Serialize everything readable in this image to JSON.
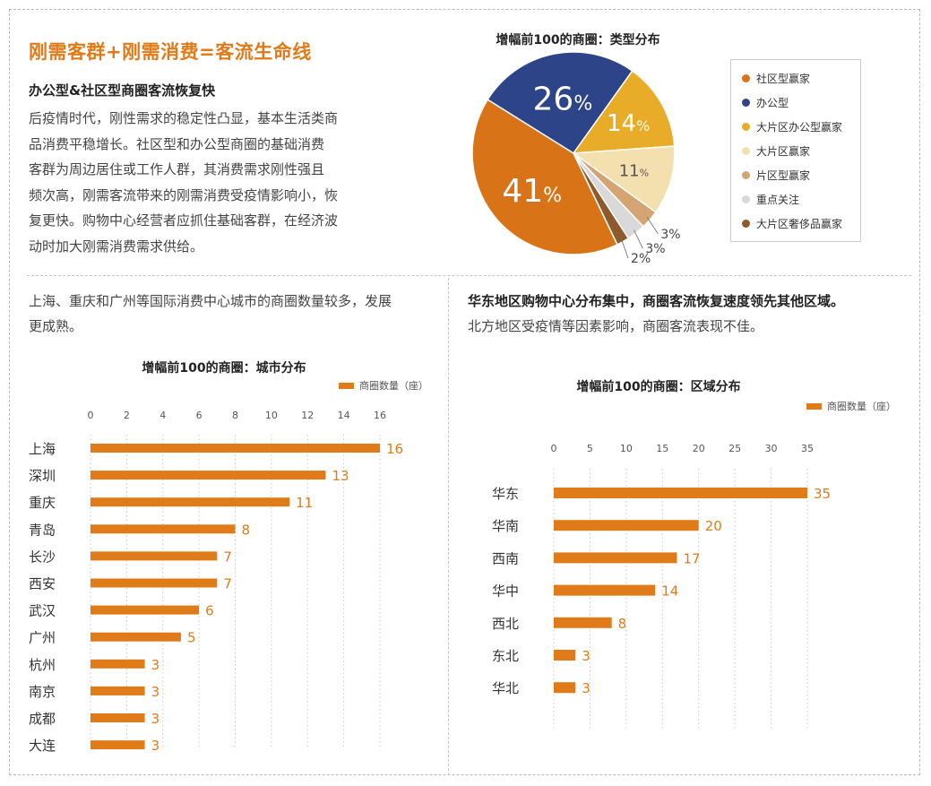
{
  "header": {
    "title": "刚需客群+刚需消费=客流生命线",
    "subtitle": "办公型&社区型商圈客流恢复快",
    "paragraph_lines": [
      "后疫情时代，刚性需求的稳定性凸显，基本生活类商",
      "品消费平稳增长。社区型和办公型商圈的基础消费",
      "客群为周边居住或工作人群，其消费需求刚性强且",
      "频次高，刚需客流带来的刚需消费受疫情影响小，恢",
      "复更快。购物中心经营者应抓住基础客群，在经济波",
      "动时加大刚需消费需求供给。"
    ]
  },
  "left_caption": {
    "line1": "上海、重庆和广州等国际消费中心城市的商圈数量较多，发展",
    "line2": "更成熟。"
  },
  "right_caption": {
    "line1": "华东地区购物中心分布集中，商圈客流恢复速度领先其他区域。",
    "line2": "北方地区受疫情等因素影响，商圈客流表现不佳。"
  },
  "colors": {
    "accent": "#e07b1a",
    "navy": "#2d4488"
  },
  "chart_data": [
    {
      "type": "pie",
      "title": "增幅前100的商圈：类型分布",
      "unit": "%",
      "slices": [
        {
          "label": "社区型赢家",
          "value": 41,
          "color": "#d97318"
        },
        {
          "label": "办公型",
          "value": 26,
          "color": "#2d4488"
        },
        {
          "label": "大片区办公型赢家",
          "value": 14,
          "color": "#e8ac28"
        },
        {
          "label": "大片区赢家",
          "value": 11,
          "color": "#f4dfae"
        },
        {
          "label": "片区型赢家",
          "value": 3,
          "color": "#d5a473"
        },
        {
          "label": "重点关注",
          "value": 3,
          "color": "#d9d9d9"
        },
        {
          "label": "大片区奢侈品赢家",
          "value": 2,
          "color": "#8c5a2b"
        }
      ],
      "legend": "right"
    },
    {
      "type": "bar",
      "orientation": "horizontal",
      "title": "增幅前100的商圈：城市分布",
      "series_name": "商圈数量（座）",
      "categories": [
        "上海",
        "深圳",
        "重庆",
        "青岛",
        "长沙",
        "西安",
        "武汉",
        "广州",
        "杭州",
        "南京",
        "成都",
        "大连"
      ],
      "values": [
        16,
        13,
        11,
        8,
        7,
        7,
        6,
        5,
        3,
        3,
        3,
        3
      ],
      "ticks": [
        0,
        2,
        4,
        6,
        8,
        10,
        12,
        14,
        16
      ],
      "xlim": [
        0,
        16
      ],
      "grid": "vertical dotted"
    },
    {
      "type": "bar",
      "orientation": "horizontal",
      "title": "增幅前100的商圈：区域分布",
      "series_name": "商圈数量（座）",
      "categories": [
        "华东",
        "华南",
        "西南",
        "华中",
        "西北",
        "东北",
        "华北"
      ],
      "values": [
        35,
        20,
        17,
        14,
        8,
        3,
        3
      ],
      "ticks": [
        0,
        5,
        10,
        15,
        20,
        25,
        30,
        35
      ],
      "xlim": [
        0,
        35
      ],
      "grid": "vertical dotted"
    }
  ]
}
